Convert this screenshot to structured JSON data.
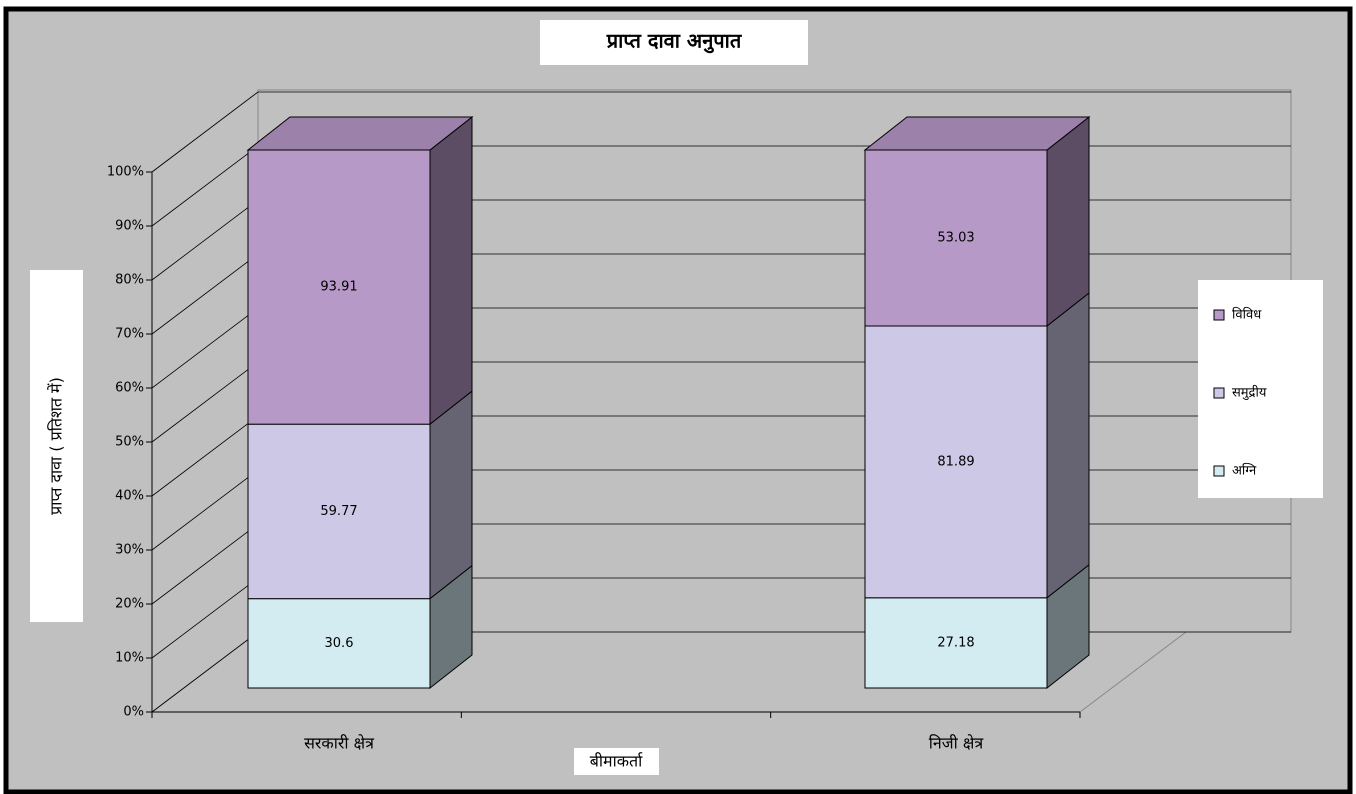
{
  "chart_data": {
    "type": "bar",
    "stacking": "percent",
    "title": "प्राप्त दावा अनुपात",
    "x_label": "बीमाकर्ता",
    "y_label": "प्राप्त दावा ( प्रतिशत में)",
    "categories": [
      "सरकारी क्षेत्र",
      "निजी क्षेत्र"
    ],
    "series": [
      {
        "name": "अग्नि",
        "color": "#d3ecf2",
        "values": [
          30.6,
          27.18
        ]
      },
      {
        "name": "समुद्रीय",
        "color": "#ccc8e6",
        "values": [
          59.77,
          81.89
        ]
      },
      {
        "name": "विविध",
        "color": "#b799c8",
        "values": [
          93.91,
          53.03
        ]
      }
    ],
    "ylim": [
      0,
      100
    ],
    "yticks": [
      {
        "value": 0,
        "label": "0%"
      },
      {
        "value": 10,
        "label": "10%"
      },
      {
        "value": 20,
        "label": "20%"
      },
      {
        "value": 30,
        "label": "30%"
      },
      {
        "value": 40,
        "label": "40%"
      },
      {
        "value": 50,
        "label": "50%"
      },
      {
        "value": 60,
        "label": "60%"
      },
      {
        "value": 70,
        "label": "70%"
      },
      {
        "value": 80,
        "label": "80%"
      },
      {
        "value": 90,
        "label": "90%"
      },
      {
        "value": 100,
        "label": "100%"
      }
    ],
    "grid": true,
    "legend": "right"
  }
}
